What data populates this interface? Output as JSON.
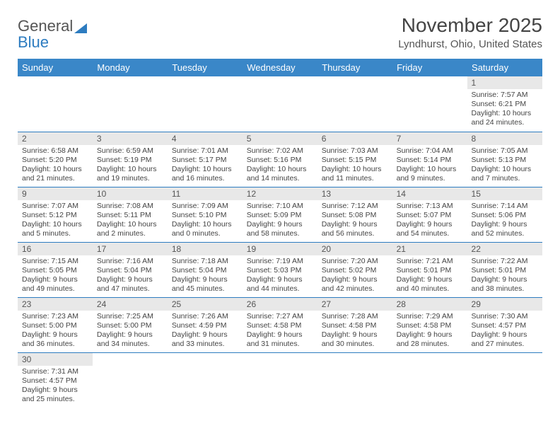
{
  "logo": {
    "text1": "General",
    "text2": "Blue"
  },
  "title": "November 2025",
  "location": "Lyndhurst, Ohio, United States",
  "colors": {
    "header_bg": "#3a87c8",
    "header_text": "#ffffff",
    "daynum_bg": "#e8e8e8",
    "border": "#2d7cc0",
    "text": "#444444",
    "logo_gray": "#555555",
    "logo_blue": "#2d7cc0"
  },
  "day_headers": [
    "Sunday",
    "Monday",
    "Tuesday",
    "Wednesday",
    "Thursday",
    "Friday",
    "Saturday"
  ],
  "weeks": [
    [
      null,
      null,
      null,
      null,
      null,
      null,
      {
        "n": "1",
        "sunrise": "7:57 AM",
        "sunset": "6:21 PM",
        "daylight": "10 hours and 24 minutes."
      }
    ],
    [
      {
        "n": "2",
        "sunrise": "6:58 AM",
        "sunset": "5:20 PM",
        "daylight": "10 hours and 21 minutes."
      },
      {
        "n": "3",
        "sunrise": "6:59 AM",
        "sunset": "5:19 PM",
        "daylight": "10 hours and 19 minutes."
      },
      {
        "n": "4",
        "sunrise": "7:01 AM",
        "sunset": "5:17 PM",
        "daylight": "10 hours and 16 minutes."
      },
      {
        "n": "5",
        "sunrise": "7:02 AM",
        "sunset": "5:16 PM",
        "daylight": "10 hours and 14 minutes."
      },
      {
        "n": "6",
        "sunrise": "7:03 AM",
        "sunset": "5:15 PM",
        "daylight": "10 hours and 11 minutes."
      },
      {
        "n": "7",
        "sunrise": "7:04 AM",
        "sunset": "5:14 PM",
        "daylight": "10 hours and 9 minutes."
      },
      {
        "n": "8",
        "sunrise": "7:05 AM",
        "sunset": "5:13 PM",
        "daylight": "10 hours and 7 minutes."
      }
    ],
    [
      {
        "n": "9",
        "sunrise": "7:07 AM",
        "sunset": "5:12 PM",
        "daylight": "10 hours and 5 minutes."
      },
      {
        "n": "10",
        "sunrise": "7:08 AM",
        "sunset": "5:11 PM",
        "daylight": "10 hours and 2 minutes."
      },
      {
        "n": "11",
        "sunrise": "7:09 AM",
        "sunset": "5:10 PM",
        "daylight": "10 hours and 0 minutes."
      },
      {
        "n": "12",
        "sunrise": "7:10 AM",
        "sunset": "5:09 PM",
        "daylight": "9 hours and 58 minutes."
      },
      {
        "n": "13",
        "sunrise": "7:12 AM",
        "sunset": "5:08 PM",
        "daylight": "9 hours and 56 minutes."
      },
      {
        "n": "14",
        "sunrise": "7:13 AM",
        "sunset": "5:07 PM",
        "daylight": "9 hours and 54 minutes."
      },
      {
        "n": "15",
        "sunrise": "7:14 AM",
        "sunset": "5:06 PM",
        "daylight": "9 hours and 52 minutes."
      }
    ],
    [
      {
        "n": "16",
        "sunrise": "7:15 AM",
        "sunset": "5:05 PM",
        "daylight": "9 hours and 49 minutes."
      },
      {
        "n": "17",
        "sunrise": "7:16 AM",
        "sunset": "5:04 PM",
        "daylight": "9 hours and 47 minutes."
      },
      {
        "n": "18",
        "sunrise": "7:18 AM",
        "sunset": "5:04 PM",
        "daylight": "9 hours and 45 minutes."
      },
      {
        "n": "19",
        "sunrise": "7:19 AM",
        "sunset": "5:03 PM",
        "daylight": "9 hours and 44 minutes."
      },
      {
        "n": "20",
        "sunrise": "7:20 AM",
        "sunset": "5:02 PM",
        "daylight": "9 hours and 42 minutes."
      },
      {
        "n": "21",
        "sunrise": "7:21 AM",
        "sunset": "5:01 PM",
        "daylight": "9 hours and 40 minutes."
      },
      {
        "n": "22",
        "sunrise": "7:22 AM",
        "sunset": "5:01 PM",
        "daylight": "9 hours and 38 minutes."
      }
    ],
    [
      {
        "n": "23",
        "sunrise": "7:23 AM",
        "sunset": "5:00 PM",
        "daylight": "9 hours and 36 minutes."
      },
      {
        "n": "24",
        "sunrise": "7:25 AM",
        "sunset": "5:00 PM",
        "daylight": "9 hours and 34 minutes."
      },
      {
        "n": "25",
        "sunrise": "7:26 AM",
        "sunset": "4:59 PM",
        "daylight": "9 hours and 33 minutes."
      },
      {
        "n": "26",
        "sunrise": "7:27 AM",
        "sunset": "4:58 PM",
        "daylight": "9 hours and 31 minutes."
      },
      {
        "n": "27",
        "sunrise": "7:28 AM",
        "sunset": "4:58 PM",
        "daylight": "9 hours and 30 minutes."
      },
      {
        "n": "28",
        "sunrise": "7:29 AM",
        "sunset": "4:58 PM",
        "daylight": "9 hours and 28 minutes."
      },
      {
        "n": "29",
        "sunrise": "7:30 AM",
        "sunset": "4:57 PM",
        "daylight": "9 hours and 27 minutes."
      }
    ],
    [
      {
        "n": "30",
        "sunrise": "7:31 AM",
        "sunset": "4:57 PM",
        "daylight": "9 hours and 25 minutes."
      },
      null,
      null,
      null,
      null,
      null,
      null
    ]
  ]
}
